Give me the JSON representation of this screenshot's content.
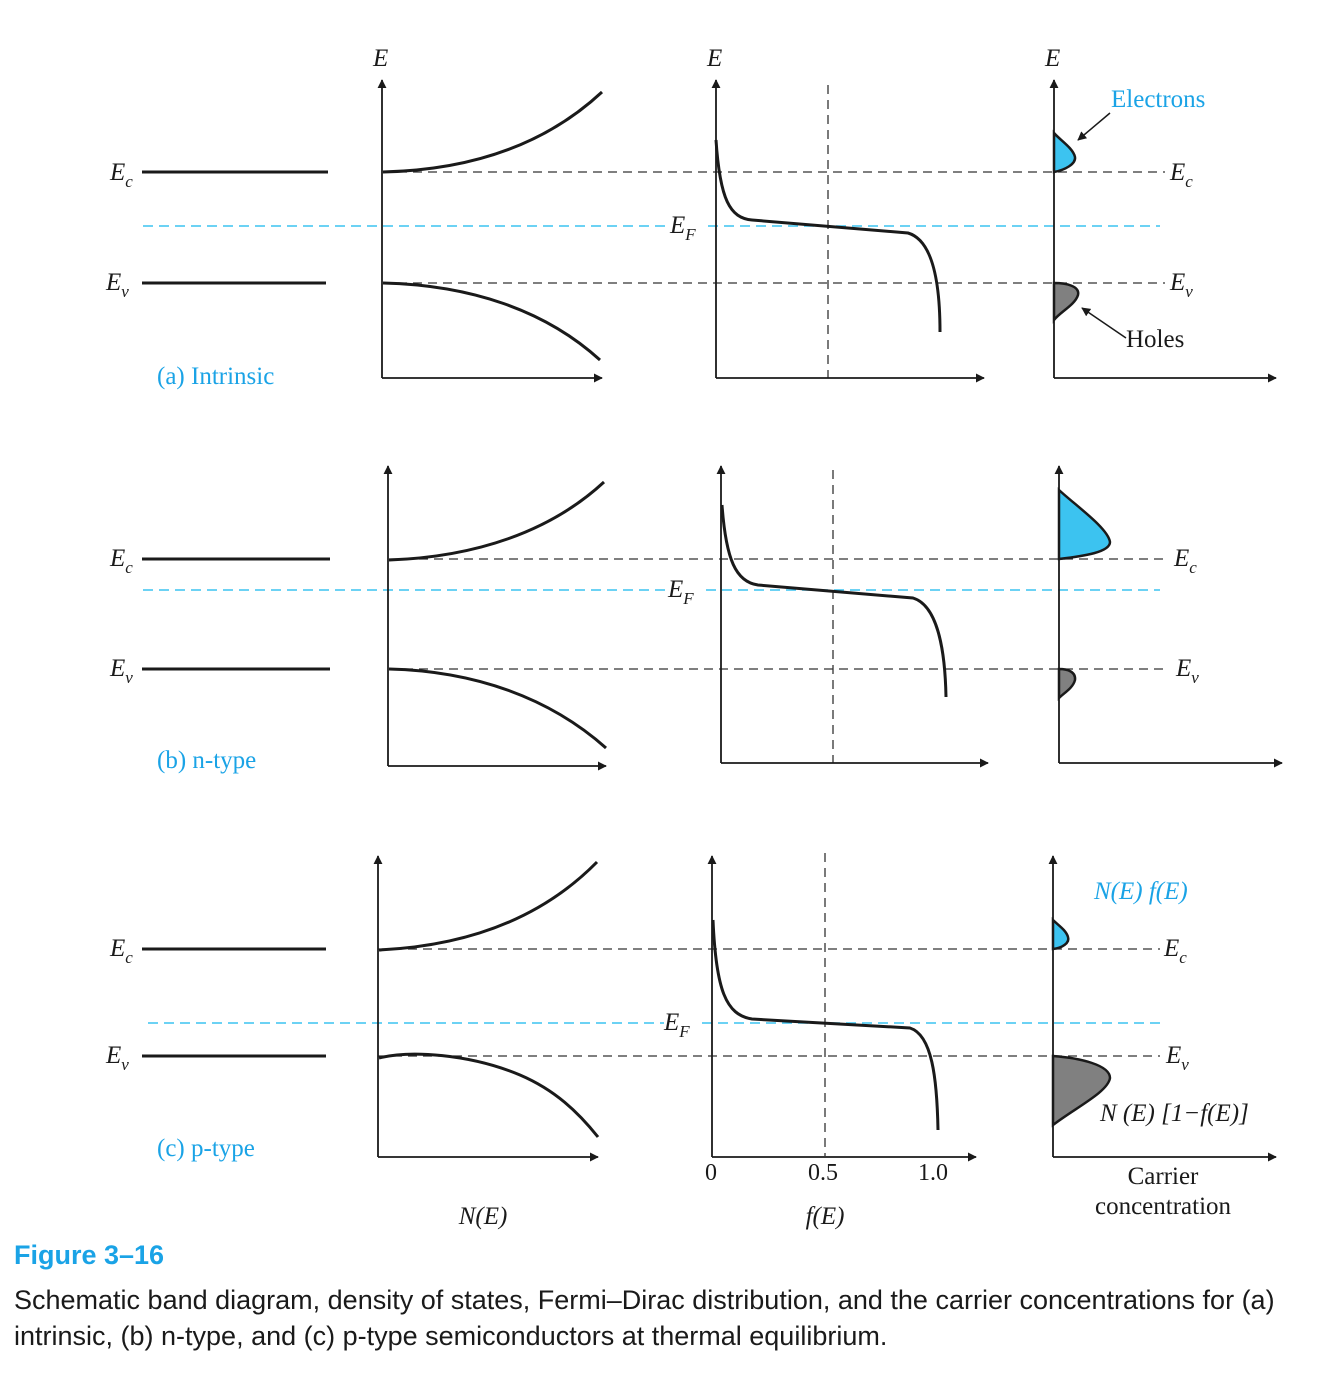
{
  "figure": {
    "rows": [
      {
        "label": "(a) Intrinsic",
        "ec_label": "E",
        "ec_sub": "c",
        "ev_label": "E",
        "ev_sub": "v",
        "ef_label": "E",
        "ef_sub": "F",
        "axis_label": "E",
        "electrons_label": "Electrons",
        "holes_label": "Holes"
      },
      {
        "label": "(b) n-type",
        "ec_label": "E",
        "ec_sub": "c",
        "ev_label": "E",
        "ev_sub": "v",
        "ef_label": "E",
        "ef_sub": "F"
      },
      {
        "label": "(c) p-type",
        "ec_label": "E",
        "ec_sub": "c",
        "ev_label": "E",
        "ev_sub": "v",
        "ef_label": "E",
        "ef_sub": "F",
        "nf_label": "N(E) f(E)",
        "nh_label": "N (E) [1−f(E)]"
      }
    ],
    "ticks": {
      "zero": "0",
      "half": "0.5",
      "one": "1.0"
    },
    "axis_titles": {
      "dos": "N(E)",
      "fermi": "f(E)",
      "carrier_line1": "Carrier",
      "carrier_line2": "concentration"
    },
    "colors": {
      "accent": "#1aa3e6",
      "electrons": "#3cc3f0",
      "holes": "#808080",
      "line": "#1a1a1a"
    }
  },
  "caption": {
    "title": "Figure 3–16",
    "text": "Schematic band diagram, density of states, Fermi–Dirac distribution, and the carrier concentrations for (a) intrinsic, (b) n-type, and (c) p-type semiconductors at thermal equilibrium."
  }
}
